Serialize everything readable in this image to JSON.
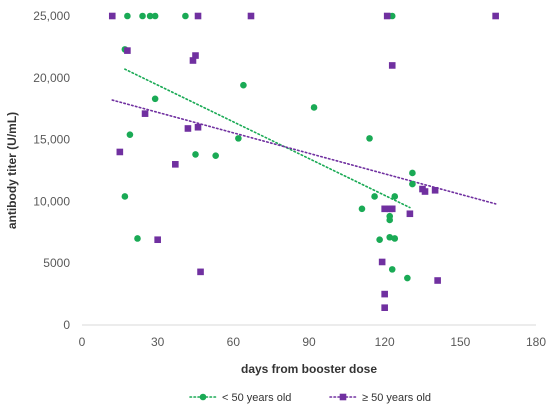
{
  "chart_data": {
    "type": "scatter",
    "title": "",
    "xlabel": "days from booster dose",
    "ylabel": "antibody titer (U/mL)",
    "xlim": [
      0,
      180
    ],
    "ylim": [
      0,
      25000
    ],
    "x_ticks": [
      0,
      30,
      60,
      90,
      120,
      150,
      180
    ],
    "x_tick_labels": [
      "0",
      "30",
      "60",
      "90",
      "120",
      "150",
      "180"
    ],
    "y_ticks": [
      0,
      5000,
      10000,
      15000,
      20000,
      25000
    ],
    "y_tick_labels": [
      "0",
      "5000",
      "10,000",
      "15,000",
      "20,000",
      "25,000"
    ],
    "grid": false,
    "legend_position": "bottom",
    "series": [
      {
        "name": "< 50 years old",
        "marker": "circle",
        "color": "#1aaa55",
        "trendline": {
          "type": "linear",
          "style": "dotted",
          "x": [
            17,
            130
          ],
          "y": [
            20700,
            9500
          ]
        },
        "points": [
          [
            18,
            25000
          ],
          [
            24,
            25000
          ],
          [
            27,
            25000
          ],
          [
            29,
            25000
          ],
          [
            41,
            25000
          ],
          [
            123,
            25000
          ],
          [
            17,
            22300
          ],
          [
            64,
            19400
          ],
          [
            29,
            18300
          ],
          [
            92,
            17600
          ],
          [
            19,
            15400
          ],
          [
            114,
            15100
          ],
          [
            62,
            15100
          ],
          [
            45,
            13800
          ],
          [
            53,
            13700
          ],
          [
            131,
            12300
          ],
          [
            131,
            11400
          ],
          [
            17,
            10400
          ],
          [
            116,
            10400
          ],
          [
            124,
            10400
          ],
          [
            111,
            9400
          ],
          [
            122,
            8800
          ],
          [
            122,
            8500
          ],
          [
            22,
            7000
          ],
          [
            122,
            7100
          ],
          [
            124,
            7000
          ],
          [
            118,
            6900
          ],
          [
            123,
            4500
          ],
          [
            129,
            3800
          ]
        ]
      },
      {
        "name": "≥ 50 years old",
        "marker": "square",
        "color": "#7030a0",
        "trendline": {
          "type": "linear",
          "style": "dotted",
          "x": [
            12,
            164
          ],
          "y": [
            18200,
            9800
          ]
        },
        "points": [
          [
            12,
            25000
          ],
          [
            46,
            25000
          ],
          [
            67,
            25000
          ],
          [
            121,
            25000
          ],
          [
            164,
            25000
          ],
          [
            18,
            22200
          ],
          [
            45,
            21800
          ],
          [
            44,
            21400
          ],
          [
            123,
            21000
          ],
          [
            25,
            17100
          ],
          [
            46,
            16000
          ],
          [
            42,
            15900
          ],
          [
            15,
            14000
          ],
          [
            37,
            13000
          ],
          [
            135,
            11000
          ],
          [
            136,
            10800
          ],
          [
            140,
            10900
          ],
          [
            120,
            9400
          ],
          [
            122,
            9400
          ],
          [
            123,
            9400
          ],
          [
            130,
            9000
          ],
          [
            30,
            6900
          ],
          [
            119,
            5100
          ],
          [
            47,
            4300
          ],
          [
            141,
            3600
          ],
          [
            120,
            2500
          ],
          [
            120,
            1400
          ]
        ]
      }
    ]
  }
}
